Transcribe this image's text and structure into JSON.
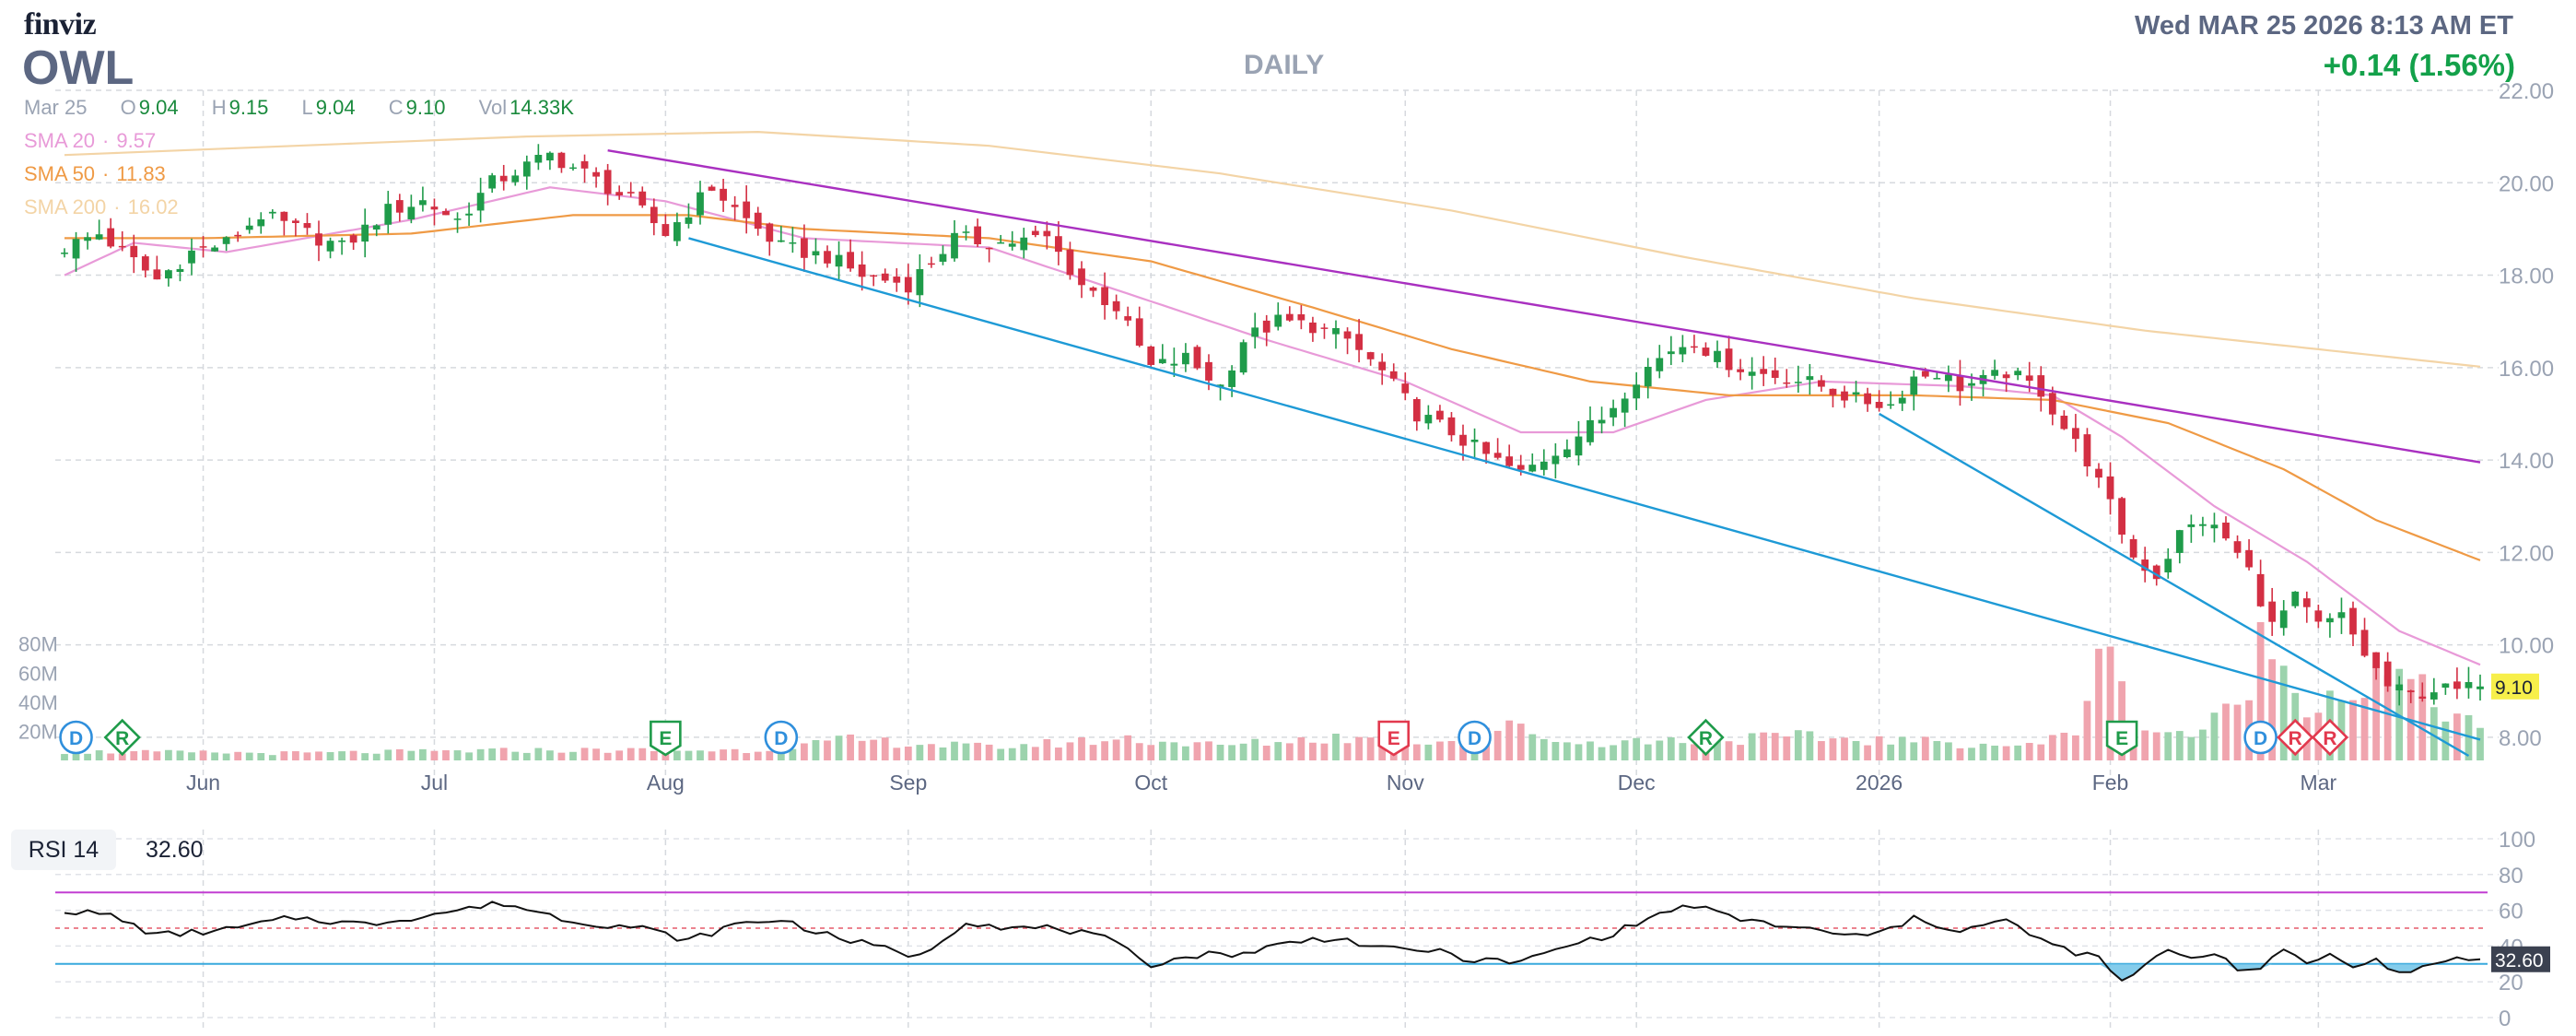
{
  "header": {
    "logo": "finviz",
    "ticker": "OWL",
    "timeframe": "DAILY",
    "datetime": "Wed MAR 25 2026 8:13 AM ET",
    "change": "+0.14 (1.56%)"
  },
  "ohlc": {
    "date": "Mar 25",
    "open_label": "O",
    "open": "9.04",
    "high_label": "H",
    "high": "9.15",
    "low_label": "L",
    "low": "9.04",
    "close_label": "C",
    "close": "9.10",
    "vol_label": "Vol",
    "vol": "14.33K"
  },
  "sma_legend": [
    {
      "label": "SMA 20",
      "value": "9.57"
    },
    {
      "label": "SMA 50",
      "value": "11.83"
    },
    {
      "label": "SMA 200",
      "value": "16.02"
    }
  ],
  "rsi": {
    "label": "RSI 14",
    "value": "32.60"
  },
  "colors": {
    "up": "#1f9b4a",
    "down": "#d32f43",
    "vol_up": "#9cd3ad",
    "vol_down": "#f0a4ae",
    "sma20": "#e89ad8",
    "sma50": "#ef9a45",
    "sma200": "#f3d4a6",
    "trend_upper": "#a930c0",
    "trend_lower": "#1e9ad6",
    "rsi_line": "#111111",
    "rsi_fill": "#6fc3e8",
    "last_price_bg": "#f7ef4a",
    "rsi_badge_bg": "#3b4150"
  },
  "chart_data": [
    {
      "type": "candlestick",
      "title": "OWL DAILY",
      "price_ylim": [
        7.5,
        22.0
      ],
      "price_ticks": [
        "22.00",
        "20.00",
        "18.00",
        "16.00",
        "14.00",
        "12.00",
        "10.00",
        "8.00"
      ],
      "volume_ticks": [
        "80M",
        "60M",
        "40M",
        "20M"
      ],
      "volume_max": 95,
      "x_tick_labels": [
        {
          "label": "Jun",
          "i": 12
        },
        {
          "label": "Jul",
          "i": 32
        },
        {
          "label": "Aug",
          "i": 52
        },
        {
          "label": "Sep",
          "i": 73
        },
        {
          "label": "Oct",
          "i": 94
        },
        {
          "label": "Nov",
          "i": 116
        },
        {
          "label": "Dec",
          "i": 136
        },
        {
          "label": "2026",
          "i": 157
        },
        {
          "label": "Feb",
          "i": 177
        },
        {
          "label": "Mar",
          "i": 195
        }
      ],
      "last_price_label": "9.10",
      "n_bars": 210,
      "anchors": [
        [
          0,
          18.6
        ],
        [
          3,
          18.9
        ],
        [
          5,
          18.5
        ],
        [
          8,
          17.9
        ],
        [
          11,
          18.5
        ],
        [
          14,
          18.7
        ],
        [
          17,
          19.3
        ],
        [
          21,
          18.9
        ],
        [
          24,
          18.6
        ],
        [
          28,
          19.4
        ],
        [
          31,
          19.6
        ],
        [
          34,
          19.2
        ],
        [
          37,
          20.0
        ],
        [
          42,
          20.6
        ],
        [
          45,
          20.2
        ],
        [
          49,
          19.6
        ],
        [
          52,
          18.9
        ],
        [
          54,
          19.4
        ],
        [
          56,
          19.9
        ],
        [
          59,
          19.2
        ],
        [
          62,
          18.6
        ],
        [
          66,
          18.4
        ],
        [
          69,
          18.0
        ],
        [
          73,
          17.8
        ],
        [
          77,
          18.8
        ],
        [
          81,
          18.7
        ],
        [
          85,
          18.8
        ],
        [
          88,
          17.8
        ],
        [
          91,
          17.3
        ],
        [
          94,
          16.0
        ],
        [
          97,
          16.2
        ],
        [
          100,
          15.6
        ],
        [
          102,
          16.6
        ],
        [
          105,
          17.0
        ],
        [
          108,
          16.9
        ],
        [
          111,
          16.6
        ],
        [
          114,
          15.9
        ],
        [
          117,
          15.0
        ],
        [
          120,
          14.6
        ],
        [
          123,
          14.1
        ],
        [
          126,
          13.7
        ],
        [
          129,
          14.2
        ],
        [
          133,
          14.9
        ],
        [
          136,
          15.8
        ],
        [
          139,
          16.4
        ],
        [
          141,
          16.6
        ],
        [
          143,
          16.2
        ],
        [
          146,
          15.9
        ],
        [
          149,
          15.8
        ],
        [
          152,
          15.6
        ],
        [
          155,
          15.3
        ],
        [
          158,
          15.2
        ],
        [
          160,
          15.8
        ],
        [
          162,
          15.9
        ],
        [
          164,
          15.6
        ],
        [
          166,
          15.7
        ],
        [
          168,
          15.9
        ],
        [
          171,
          15.5
        ],
        [
          173,
          14.7
        ],
        [
          175,
          14.0
        ],
        [
          177,
          13.0
        ],
        [
          179,
          11.9
        ],
        [
          181,
          11.5
        ],
        [
          183,
          12.4
        ],
        [
          185,
          12.7
        ],
        [
          187,
          12.3
        ],
        [
          189,
          11.6
        ],
        [
          191,
          10.4
        ],
        [
          193,
          11.0
        ],
        [
          195,
          10.4
        ],
        [
          197,
          10.6
        ],
        [
          199,
          9.8
        ],
        [
          201,
          9.1
        ],
        [
          203,
          8.9
        ],
        [
          205,
          9.05
        ],
        [
          207,
          9.0
        ],
        [
          209,
          9.1
        ]
      ],
      "volume_anchors": [
        [
          0,
          6
        ],
        [
          20,
          5
        ],
        [
          40,
          7
        ],
        [
          60,
          7
        ],
        [
          68,
          14
        ],
        [
          80,
          9
        ],
        [
          92,
          15
        ],
        [
          100,
          10
        ],
        [
          110,
          16
        ],
        [
          118,
          12
        ],
        [
          122,
          23
        ],
        [
          126,
          22
        ],
        [
          130,
          12
        ],
        [
          140,
          14
        ],
        [
          150,
          16
        ],
        [
          160,
          13
        ],
        [
          170,
          10
        ],
        [
          174,
          19
        ],
        [
          176,
          84
        ],
        [
          178,
          46
        ],
        [
          180,
          22
        ],
        [
          184,
          18
        ],
        [
          188,
          36
        ],
        [
          190,
          82
        ],
        [
          192,
          64
        ],
        [
          194,
          42
        ],
        [
          198,
          48
        ],
        [
          202,
          58
        ],
        [
          206,
          34
        ],
        [
          209,
          27
        ]
      ],
      "sma_series": [
        {
          "name": "SMA 20",
          "anchors": [
            [
              0,
              18.0
            ],
            [
              6,
              18.7
            ],
            [
              14,
              18.5
            ],
            [
              30,
              19.2
            ],
            [
              42,
              19.9
            ],
            [
              52,
              19.6
            ],
            [
              64,
              18.8
            ],
            [
              80,
              18.6
            ],
            [
              92,
              17.6
            ],
            [
              104,
              16.6
            ],
            [
              116,
              15.7
            ],
            [
              126,
              14.6
            ],
            [
              134,
              14.6
            ],
            [
              142,
              15.3
            ],
            [
              152,
              15.7
            ],
            [
              164,
              15.6
            ],
            [
              172,
              15.4
            ],
            [
              178,
              14.5
            ],
            [
              186,
              13.0
            ],
            [
              194,
              11.8
            ],
            [
              202,
              10.3
            ],
            [
              209,
              9.57
            ]
          ]
        },
        {
          "name": "SMA 50",
          "anchors": [
            [
              0,
              18.8
            ],
            [
              12,
              18.8
            ],
            [
              30,
              18.9
            ],
            [
              44,
              19.3
            ],
            [
              54,
              19.3
            ],
            [
              64,
              19.0
            ],
            [
              80,
              18.8
            ],
            [
              94,
              18.3
            ],
            [
              108,
              17.3
            ],
            [
              120,
              16.4
            ],
            [
              132,
              15.7
            ],
            [
              144,
              15.4
            ],
            [
              160,
              15.4
            ],
            [
              172,
              15.3
            ],
            [
              182,
              14.8
            ],
            [
              192,
              13.8
            ],
            [
              200,
              12.7
            ],
            [
              209,
              11.83
            ]
          ]
        },
        {
          "name": "SMA 200",
          "anchors": [
            [
              0,
              20.6
            ],
            [
              20,
              20.8
            ],
            [
              40,
              21.0
            ],
            [
              60,
              21.1
            ],
            [
              80,
              20.8
            ],
            [
              100,
              20.2
            ],
            [
              120,
              19.4
            ],
            [
              140,
              18.4
            ],
            [
              160,
              17.5
            ],
            [
              180,
              16.8
            ],
            [
              209,
              16.02
            ]
          ]
        }
      ],
      "trendlines": [
        {
          "name": "upper",
          "color": "trend_upper",
          "from": [
            47,
            20.7
          ],
          "to": [
            209,
            13.95
          ]
        },
        {
          "name": "lower",
          "color": "trend_lower",
          "from": [
            54,
            18.8
          ],
          "to": [
            209,
            7.95
          ]
        },
        {
          "name": "lower-steep",
          "color": "trend_lower",
          "from": [
            157,
            15.0
          ],
          "to": [
            208,
            7.6
          ]
        }
      ],
      "event_markers": [
        {
          "label": "D",
          "kind": "dividend",
          "i": 1
        },
        {
          "label": "R",
          "kind": "revision",
          "i": 5
        },
        {
          "label": "E",
          "kind": "earnings",
          "i": 52
        },
        {
          "label": "D",
          "kind": "dividend",
          "i": 62
        },
        {
          "label": "E",
          "kind": "earnings-bad",
          "i": 115
        },
        {
          "label": "D",
          "kind": "dividend",
          "i": 122
        },
        {
          "label": "R",
          "kind": "revision",
          "i": 142
        },
        {
          "label": "E",
          "kind": "earnings",
          "i": 178
        },
        {
          "label": "D",
          "kind": "dividend",
          "i": 190
        },
        {
          "label": "R",
          "kind": "revision-bad",
          "i": 193
        },
        {
          "label": "R",
          "kind": "revision-bad",
          "i": 196
        }
      ]
    },
    {
      "type": "line",
      "title": "RSI 14",
      "ylim": [
        0,
        100
      ],
      "y_ticks": [
        "100",
        "80",
        "60",
        "40",
        "20",
        "0"
      ],
      "overbought": 70,
      "oversold": 30,
      "last_value_label": "32.60",
      "anchors": [
        [
          0,
          60
        ],
        [
          4,
          57
        ],
        [
          8,
          46
        ],
        [
          14,
          49
        ],
        [
          20,
          56
        ],
        [
          26,
          52
        ],
        [
          32,
          58
        ],
        [
          38,
          64
        ],
        [
          44,
          54
        ],
        [
          50,
          50
        ],
        [
          54,
          43
        ],
        [
          58,
          52
        ],
        [
          62,
          55
        ],
        [
          66,
          46
        ],
        [
          70,
          40
        ],
        [
          74,
          34
        ],
        [
          78,
          54
        ],
        [
          82,
          50
        ],
        [
          86,
          50
        ],
        [
          90,
          44
        ],
        [
          94,
          30
        ],
        [
          98,
          35
        ],
        [
          102,
          36
        ],
        [
          106,
          42
        ],
        [
          110,
          45
        ],
        [
          114,
          38
        ],
        [
          118,
          38
        ],
        [
          122,
          32
        ],
        [
          126,
          31
        ],
        [
          130,
          40
        ],
        [
          134,
          47
        ],
        [
          138,
          58
        ],
        [
          141,
          63
        ],
        [
          144,
          56
        ],
        [
          148,
          52
        ],
        [
          152,
          48
        ],
        [
          156,
          45
        ],
        [
          160,
          55
        ],
        [
          164,
          49
        ],
        [
          168,
          54
        ],
        [
          172,
          40
        ],
        [
          176,
          33
        ],
        [
          178,
          20
        ],
        [
          180,
          28
        ],
        [
          182,
          39
        ],
        [
          184,
          33
        ],
        [
          186,
          37
        ],
        [
          188,
          28
        ],
        [
          190,
          26
        ],
        [
          192,
          38
        ],
        [
          194,
          31
        ],
        [
          196,
          35
        ],
        [
          198,
          30
        ],
        [
          200,
          32
        ],
        [
          202,
          24
        ],
        [
          204,
          28
        ],
        [
          206,
          33
        ],
        [
          209,
          32.6
        ]
      ]
    }
  ]
}
